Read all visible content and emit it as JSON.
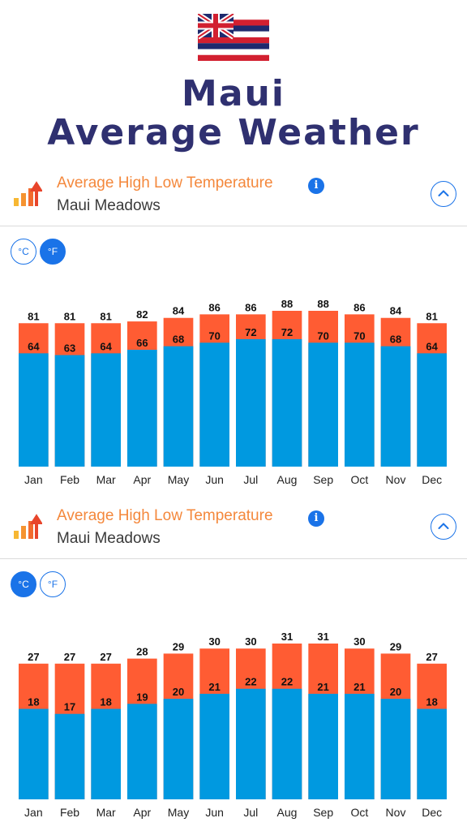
{
  "page": {
    "title_line1": "Maui",
    "title_line2": "Average Weather"
  },
  "colors": {
    "title": "#2f3070",
    "section_title": "#f4883c",
    "high_bar": "#ff5c33",
    "low_bar": "#0099e0",
    "accent": "#1a73e8"
  },
  "sections": [
    {
      "icon": "temperature-bars-icon",
      "title": "Average High Low Temperature",
      "location": "Maui Meadows",
      "info_label": "i",
      "unit_c_label": "°C",
      "unit_f_label": "°F",
      "active_unit": "F"
    },
    {
      "icon": "temperature-bars-icon",
      "title": "Average High Low Temperature",
      "location": "Maui Meadows",
      "info_label": "i",
      "unit_c_label": "°C",
      "unit_f_label": "°F",
      "active_unit": "C"
    }
  ],
  "chart_data": [
    {
      "type": "bar",
      "unit": "°F",
      "categories": [
        "Jan",
        "Feb",
        "Mar",
        "Apr",
        "May",
        "Jun",
        "Jul",
        "Aug",
        "Sep",
        "Oct",
        "Nov",
        "Dec"
      ],
      "series": [
        {
          "values": [
            81,
            81,
            81,
            82,
            84,
            86,
            86,
            88,
            88,
            86,
            84,
            81
          ]
        },
        {
          "values": [
            64,
            63,
            64,
            66,
            68,
            70,
            72,
            72,
            70,
            70,
            68,
            64
          ]
        }
      ],
      "ylim": [
        0,
        90
      ]
    },
    {
      "type": "bar",
      "unit": "°C",
      "categories": [
        "Jan",
        "Feb",
        "Mar",
        "Apr",
        "May",
        "Jun",
        "Jul",
        "Aug",
        "Sep",
        "Oct",
        "Nov",
        "Dec"
      ],
      "series": [
        {
          "values": [
            27,
            27,
            27,
            28,
            29,
            30,
            30,
            31,
            31,
            30,
            29,
            27
          ]
        },
        {
          "values": [
            18,
            17,
            18,
            19,
            20,
            21,
            22,
            22,
            21,
            21,
            20,
            18
          ]
        }
      ],
      "ylim": [
        0,
        32
      ]
    }
  ]
}
